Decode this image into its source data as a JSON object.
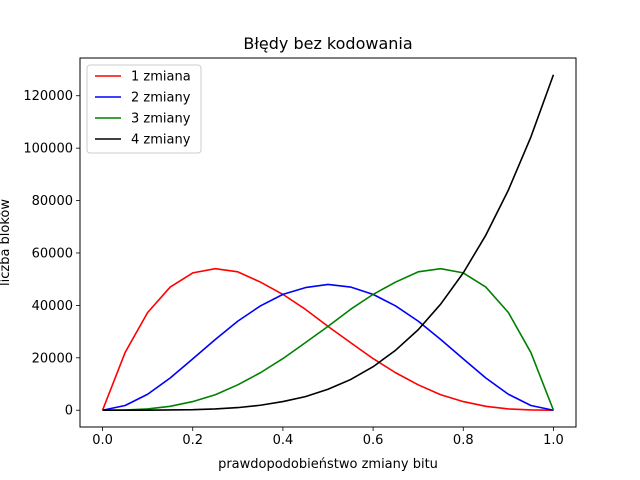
{
  "chart_data": {
    "type": "line",
    "title": "Błędy bez kodowania",
    "xlabel": "prawdopodobieństwo zmiany bitu",
    "ylabel": "liczba bloków",
    "xlim": [
      -0.05,
      1.05
    ],
    "ylim": [
      -6400,
      134400
    ],
    "xticks": [
      0.0,
      0.2,
      0.4,
      0.6,
      0.8,
      1.0
    ],
    "xtick_labels": [
      "0.0",
      "0.2",
      "0.4",
      "0.6",
      "0.8",
      "1.0"
    ],
    "yticks": [
      0,
      20000,
      40000,
      60000,
      80000,
      100000,
      120000
    ],
    "ytick_labels": [
      "0",
      "20000",
      "40000",
      "60000",
      "80000",
      "100000",
      "120000"
    ],
    "grid": false,
    "legend_position": "top-left",
    "x": [
      0.0,
      0.05,
      0.1,
      0.15,
      0.2,
      0.25,
      0.3,
      0.35,
      0.4,
      0.45,
      0.5,
      0.55,
      0.6,
      0.65,
      0.7,
      0.75,
      0.8,
      0.85,
      0.9,
      0.95,
      1.0
    ],
    "series": [
      {
        "name": "1 zmiana",
        "color": "#ff0000",
        "values": [
          0,
          22000,
          37300,
          47000,
          52400,
          54000,
          52800,
          48900,
          44200,
          38500,
          32000,
          25800,
          19700,
          14300,
          9700,
          5900,
          3300,
          1500,
          500,
          100,
          0
        ]
      },
      {
        "name": "2 zmiany",
        "color": "#0000ff",
        "values": [
          0,
          1800,
          6100,
          12300,
          19600,
          27000,
          34000,
          39800,
          44200,
          46800,
          48000,
          47000,
          44200,
          39800,
          34000,
          27000,
          19600,
          12300,
          6100,
          1800,
          0
        ]
      },
      {
        "name": "3 zmiany",
        "color": "#008000",
        "values": [
          0,
          100,
          500,
          1500,
          3300,
          5900,
          9700,
          14300,
          19700,
          25800,
          32000,
          38500,
          44200,
          48900,
          52800,
          54000,
          52400,
          47000,
          37300,
          22000,
          0
        ]
      },
      {
        "name": "4 zmiany",
        "color": "#000000",
        "values": [
          0,
          0,
          0,
          100,
          200,
          500,
          1000,
          1900,
          3300,
          5200,
          8000,
          11700,
          16600,
          22900,
          30700,
          40500,
          52400,
          66800,
          84000,
          104300,
          128000
        ]
      }
    ]
  }
}
